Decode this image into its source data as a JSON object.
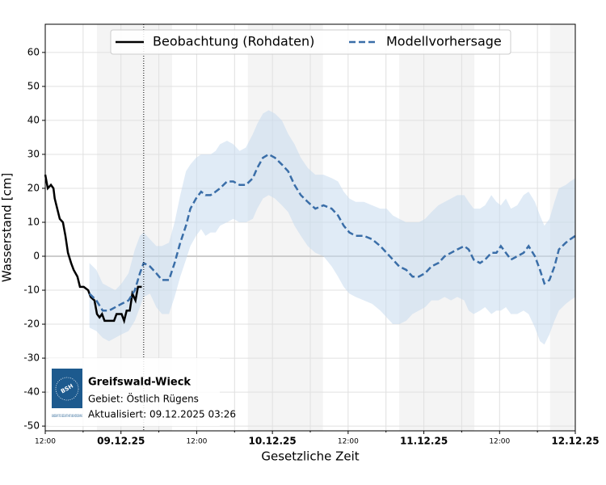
{
  "chart_data": {
    "type": "line",
    "ylabel": "Wasserstand [cm]",
    "xlabel": "Gesetzliche Zeit",
    "xlim": [
      0,
      84
    ],
    "ylim": [
      -51.4,
      68.3
    ],
    "xticks": [
      {
        "value": 0,
        "label": "12:00"
      },
      {
        "value": 12,
        "label": "09.12.25"
      },
      {
        "value": 24,
        "label": "12:00"
      },
      {
        "value": 36,
        "label": "10.12.25"
      },
      {
        "value": 48,
        "label": "12:00"
      },
      {
        "value": 60,
        "label": "11.12.25"
      },
      {
        "value": 72,
        "label": "12:00"
      },
      {
        "value": 84,
        "label": "12.12.25"
      }
    ],
    "xticks_minor": [
      6,
      18,
      30,
      42,
      54,
      66,
      78
    ],
    "yticks": [
      -50,
      -40,
      -30,
      -20,
      -10,
      0,
      10,
      20,
      30,
      40,
      50,
      60
    ],
    "grid": true,
    "zero_line": true,
    "legend_position": "top",
    "shaded_spans": [
      [
        8.2,
        20.1
      ],
      [
        32.1,
        44.0
      ],
      [
        56.1,
        68.0
      ],
      [
        80.0,
        84.0
      ]
    ],
    "now_x": 15.6,
    "series": [
      {
        "name": "Beobachtung (Rohdaten)",
        "color": "#000000",
        "dashed": false,
        "x": [
          0,
          0.4,
          0.9,
          1.3,
          1.5,
          1.9,
          2.3,
          2.8,
          3.2,
          3.6,
          4.1,
          4.5,
          5.1,
          5.5,
          6.1,
          6.8,
          7.2,
          7.8,
          8.2,
          8.6,
          9.0,
          9.4,
          10.2,
          10.9,
          11.3,
          12.1,
          12.5,
          12.9,
          13.4,
          13.8,
          14.3,
          14.7,
          15.3
        ],
        "values": [
          24,
          20,
          21,
          20,
          17,
          14,
          11,
          10,
          6,
          1,
          -2,
          -4,
          -6,
          -9,
          -9,
          -10,
          -12,
          -13,
          -17,
          -18,
          -17,
          -19,
          -19,
          -19,
          -17,
          -17,
          -19,
          -16,
          -16,
          -11,
          -13,
          -9,
          -9
        ]
      },
      {
        "name": "Modellvorhersage",
        "color": "#3a6ea8",
        "dashed": true,
        "x": [
          7.0,
          8.1,
          9.1,
          10.1,
          11.1,
          12.1,
          13.2,
          14.2,
          15.0,
          15.6,
          16.6,
          17.6,
          18.5,
          19.6,
          20.5,
          21.4,
          22.3,
          23.0,
          23.9,
          24.7,
          25.4,
          26.2,
          27.0,
          27.7,
          28.8,
          29.8,
          30.8,
          31.8,
          32.9,
          33.6,
          34.5,
          35.4,
          36.4,
          37.5,
          38.5,
          39.5,
          40.5,
          41.6,
          42.8,
          44.1,
          45.4,
          46.4,
          47.3,
          48.2,
          49.2,
          50.5,
          51.8,
          53.1,
          54.1,
          55.1,
          56.1,
          57.2,
          58.2,
          59.2,
          60.2,
          61.2,
          62.3,
          63.3,
          64.3,
          65.3,
          66.4,
          67.1,
          67.9,
          68.9,
          69.7,
          70.7,
          71.5,
          72.2,
          73.0,
          73.8,
          74.8,
          75.8,
          76.6,
          77.6,
          78.4,
          79.1,
          79.9,
          80.7,
          81.4,
          82.5,
          83.2,
          84.0
        ],
        "values": [
          -11,
          -13,
          -16,
          -16,
          -15,
          -14,
          -13,
          -10,
          -5,
          -2,
          -3,
          -5,
          -7,
          -7,
          -2,
          4,
          9,
          14,
          17,
          19,
          18,
          18,
          19,
          20,
          22,
          22,
          21,
          21,
          23,
          26,
          29,
          30,
          29,
          27,
          25,
          21,
          18,
          16,
          14,
          15,
          14,
          12,
          9,
          7,
          6,
          6,
          5,
          3,
          1,
          -1,
          -3,
          -4,
          -6,
          -6,
          -5,
          -3,
          -2,
          0,
          1,
          2,
          3,
          2,
          -1,
          -2,
          -1,
          1,
          1,
          3,
          1,
          -1,
          0,
          1,
          3,
          0,
          -4,
          -8,
          -7,
          -3,
          2,
          4,
          5,
          6
        ]
      }
    ],
    "band": {
      "color": "#c6dbef",
      "x": [
        7.0,
        8.1,
        9.1,
        10.1,
        11.1,
        12.1,
        13.2,
        14.2,
        15.0,
        15.6,
        16.6,
        17.6,
        18.5,
        19.6,
        20.5,
        21.4,
        22.3,
        23.0,
        23.9,
        24.7,
        25.4,
        26.2,
        27.0,
        27.7,
        28.8,
        29.8,
        30.8,
        31.8,
        32.9,
        33.6,
        34.5,
        35.4,
        36.4,
        37.5,
        38.5,
        39.5,
        40.5,
        41.6,
        42.8,
        44.1,
        45.4,
        46.4,
        47.3,
        48.2,
        49.2,
        50.5,
        51.8,
        53.1,
        54.1,
        55.1,
        56.1,
        57.2,
        58.2,
        59.2,
        60.2,
        61.2,
        62.3,
        63.3,
        64.3,
        65.3,
        66.4,
        67.1,
        67.9,
        68.9,
        69.7,
        70.7,
        71.5,
        72.2,
        73.0,
        73.8,
        74.8,
        75.8,
        76.6,
        77.6,
        78.4,
        79.1,
        79.9,
        80.7,
        81.4,
        82.5,
        83.2,
        84.0
      ],
      "upper": [
        -2,
        -4,
        -8,
        -9,
        -10,
        -8,
        -5,
        2,
        6,
        7,
        5,
        3,
        3,
        4,
        10,
        18,
        25,
        27,
        29,
        30,
        30,
        30,
        31,
        33,
        34,
        33,
        31,
        32,
        36,
        39,
        42,
        43,
        42,
        40,
        36,
        33,
        29,
        26,
        24,
        24,
        23,
        22,
        19,
        17,
        16,
        16,
        15,
        14,
        14,
        12,
        11,
        10,
        10,
        10,
        11,
        13,
        15,
        16,
        17,
        18,
        18,
        16,
        14,
        14,
        15,
        18,
        16,
        15,
        17,
        14,
        15,
        18,
        19,
        16,
        12,
        9,
        11,
        16,
        20,
        21,
        22,
        23
      ],
      "lower": [
        -21,
        -22,
        -24,
        -25,
        -24,
        -23,
        -22,
        -19,
        -15,
        -12,
        -11,
        -15,
        -17,
        -17,
        -12,
        -6,
        -1,
        3,
        6,
        8,
        6,
        7,
        7,
        9,
        10,
        11,
        10,
        10,
        11,
        14,
        17,
        18,
        17,
        15,
        13,
        9,
        6,
        3,
        1,
        0,
        -3,
        -6,
        -9,
        -11,
        -12,
        -13,
        -14,
        -16,
        -18,
        -20,
        -20,
        -19,
        -17,
        -16,
        -15,
        -13,
        -13,
        -12,
        -13,
        -12,
        -13,
        -16,
        -17,
        -16,
        -15,
        -17,
        -16,
        -16,
        -15,
        -17,
        -17,
        -16,
        -17,
        -21,
        -25,
        -26,
        -23,
        -19,
        -16,
        -14,
        -13,
        -12
      ]
    },
    "info": {
      "logo": "BSH",
      "logo_caption": "BUNDESAMT FÜR SEESCHIFFFAHRT UND HYDROGRAPHIE",
      "station": "Greifswald-Wieck",
      "area": "Gebiet: Östlich Rügens",
      "updated": "Aktualisiert: 09.12.2025 03:26"
    }
  }
}
